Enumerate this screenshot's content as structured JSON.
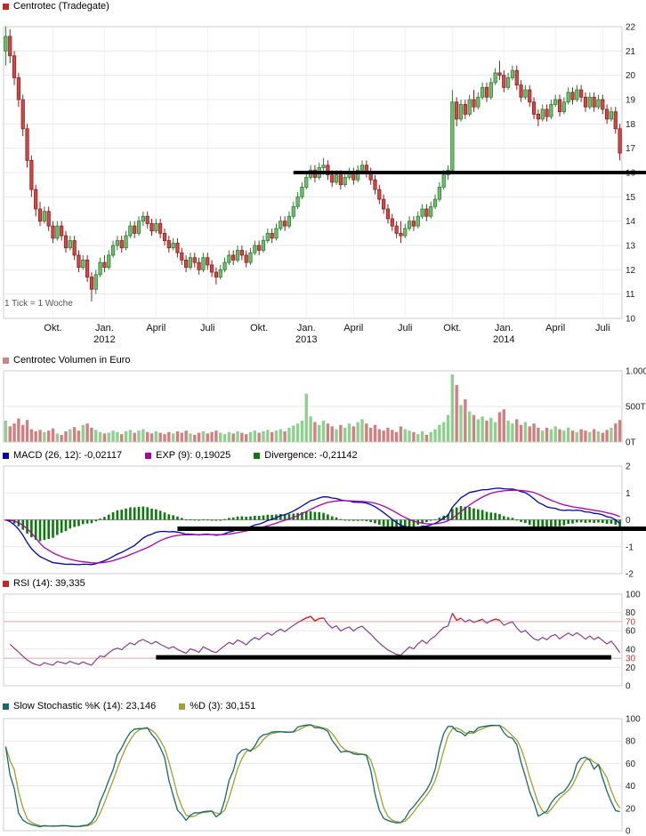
{
  "chart_data": {
    "type": "candlestick-multi-panel",
    "title": "Centrotec (Tradegate)",
    "tick_note": "1 Tick = 1 Woche",
    "x_axis": {
      "labels": [
        {
          "text": "Okt.",
          "week": 11
        },
        {
          "text": "Jan.",
          "week": 23,
          "year": "2012"
        },
        {
          "text": "April",
          "week": 35
        },
        {
          "text": "Juli",
          "week": 47
        },
        {
          "text": "Okt.",
          "week": 59
        },
        {
          "text": "Jan.",
          "week": 70,
          "year": "2013"
        },
        {
          "text": "April",
          "week": 81
        },
        {
          "text": "Juli",
          "week": 93
        },
        {
          "text": "Okt.",
          "week": 104
        },
        {
          "text": "Jan.",
          "week": 116,
          "year": "2014"
        },
        {
          "text": "April",
          "week": 128
        },
        {
          "text": "Juli",
          "week": 139
        }
      ]
    },
    "panels": {
      "price": {
        "legend": "Centrotec (Tradegate)",
        "ylim": [
          10,
          22
        ],
        "yticks": [
          {
            "label": "22",
            "value": 22
          },
          {
            "label": "21",
            "value": 21
          },
          {
            "label": "20",
            "value": 20
          },
          {
            "label": "19",
            "value": 19
          },
          {
            "label": "18",
            "value": 18
          },
          {
            "label": "17",
            "value": 17
          },
          {
            "label": "16",
            "value": 16
          },
          {
            "label": "15",
            "value": 15
          },
          {
            "label": "14",
            "value": 14
          },
          {
            "label": "13",
            "value": 13
          },
          {
            "label": "12",
            "value": 12
          },
          {
            "label": "11",
            "value": 11
          },
          {
            "label": "10",
            "value": 10
          }
        ]
      },
      "volume": {
        "legend": "Centrotec Volumen in Euro",
        "ylim": [
          0,
          1000
        ],
        "yticks": [
          {
            "label": "1.000T",
            "value": 1000
          },
          {
            "label": "500T",
            "value": 500
          },
          {
            "label": "0T",
            "value": 0
          }
        ]
      },
      "macd": {
        "legend_macd": "MACD (26, 12): -0,02117",
        "legend_exp": "EXP (9): 0,19025",
        "legend_div": "Divergence: -0,21142",
        "ylim": [
          -2,
          2
        ],
        "yticks": [
          {
            "label": "2",
            "value": 2
          },
          {
            "label": "1",
            "value": 1
          },
          {
            "label": "0",
            "value": 0
          },
          {
            "label": "-1",
            "value": -1
          },
          {
            "label": "-2",
            "value": -2
          }
        ]
      },
      "rsi": {
        "legend": "RSI (14): 39,335",
        "ylim": [
          0,
          100
        ],
        "yticks": [
          {
            "label": "100",
            "value": 100
          },
          {
            "label": "80",
            "value": 80
          },
          {
            "label": "60",
            "value": 60
          },
          {
            "label": "40",
            "value": 40
          },
          {
            "label": "20",
            "value": 20
          },
          {
            "label": "0",
            "value": 0
          }
        ],
        "thresholds": [
          {
            "label": "70",
            "value": 70
          },
          {
            "label": "30",
            "value": 30
          }
        ]
      },
      "stoch": {
        "legend_k": "Slow Stochastic %K (14): 23,146",
        "legend_d": "%D (3): 30,151",
        "ylim": [
          0,
          100
        ],
        "yticks": [
          {
            "label": "100",
            "value": 100
          },
          {
            "label": "80",
            "value": 80
          },
          {
            "label": "60",
            "value": 60
          },
          {
            "label": "40",
            "value": 40
          },
          {
            "label": "20",
            "value": 20
          },
          {
            "label": "0",
            "value": 0
          }
        ]
      }
    },
    "annotations": {
      "price_line": {
        "value": 16.0,
        "start_week": 67,
        "to_right_edge": true,
        "thickness": 4
      },
      "macd_line": {
        "value": -0.33,
        "start_week": 40,
        "to_right_edge": true,
        "thickness": 5
      },
      "rsi_line": {
        "value": 31,
        "start_week": 35,
        "end_week": 141,
        "thickness": 5
      }
    },
    "colors": {
      "up_fill": "#6fbf6f",
      "up_stroke": "#2e7d32",
      "down_fill": "#d04848",
      "down_stroke": "#8e1f1f",
      "vol_up": "#8fcf8f",
      "vol_down": "#d08080",
      "macd_line": "#0000b0",
      "exp_line": "#aa00aa",
      "divergence": "#0b7a0b",
      "rsi_line": "#8a3d8a",
      "rsi_overbought": "#dd2222",
      "rsi_threshold": "#e8a8a8",
      "rsi_threshold_label": "#cc3333",
      "stoch_k": "#176a6a",
      "stoch_d": "#a0a030",
      "legend_price": "#cc2222",
      "legend_volume": "#cc8484",
      "legend_rsi": "#cc2222",
      "annotation": "#000000",
      "grid": "#e9e9e9",
      "grid_zero": "#999999",
      "frame": "#cccccc",
      "grid_vertical": "#f2f2f2"
    },
    "candles": [
      [
        21.0,
        22.0,
        20.4,
        21.6
      ],
      [
        21.6,
        21.9,
        20.5,
        20.8
      ],
      [
        20.8,
        21.0,
        19.6,
        19.9
      ],
      [
        19.9,
        20.1,
        18.7,
        19.0
      ],
      [
        19.0,
        19.2,
        17.5,
        17.8
      ],
      [
        17.8,
        18.0,
        16.2,
        16.5
      ],
      [
        16.5,
        16.7,
        15.0,
        15.3
      ],
      [
        15.3,
        15.5,
        14.2,
        14.5
      ],
      [
        14.5,
        14.8,
        13.8,
        14.0
      ],
      [
        14.0,
        14.6,
        13.9,
        14.4
      ],
      [
        14.4,
        14.6,
        13.6,
        13.8
      ],
      [
        13.8,
        14.0,
        13.1,
        13.3
      ],
      [
        13.3,
        14.0,
        13.2,
        13.8
      ],
      [
        13.8,
        14.0,
        13.2,
        13.4
      ],
      [
        13.4,
        13.6,
        12.7,
        12.9
      ],
      [
        12.9,
        13.4,
        12.8,
        13.2
      ],
      [
        13.2,
        13.4,
        12.4,
        12.6
      ],
      [
        12.6,
        12.8,
        11.9,
        12.1
      ],
      [
        12.1,
        12.6,
        12.0,
        12.4
      ],
      [
        12.4,
        12.6,
        11.5,
        11.7
      ],
      [
        11.7,
        11.9,
        10.7,
        11.2
      ],
      [
        11.2,
        12.0,
        11.0,
        11.8
      ],
      [
        11.8,
        12.5,
        11.7,
        12.3
      ],
      [
        12.3,
        12.6,
        11.9,
        12.1
      ],
      [
        12.1,
        12.8,
        12.0,
        12.6
      ],
      [
        12.6,
        13.2,
        12.5,
        13.0
      ],
      [
        13.0,
        13.4,
        12.8,
        13.2
      ],
      [
        13.2,
        13.4,
        12.7,
        12.9
      ],
      [
        12.9,
        13.6,
        12.8,
        13.4
      ],
      [
        13.4,
        14.0,
        13.3,
        13.8
      ],
      [
        13.8,
        14.0,
        13.3,
        13.5
      ],
      [
        13.5,
        14.2,
        13.4,
        14.0
      ],
      [
        14.0,
        14.4,
        13.8,
        14.2
      ],
      [
        14.2,
        14.4,
        13.7,
        13.9
      ],
      [
        13.9,
        14.1,
        13.4,
        13.6
      ],
      [
        13.6,
        14.1,
        13.5,
        13.9
      ],
      [
        13.9,
        14.1,
        13.3,
        13.5
      ],
      [
        13.5,
        13.7,
        13.0,
        13.2
      ],
      [
        13.2,
        13.4,
        12.7,
        12.9
      ],
      [
        12.9,
        13.3,
        12.8,
        13.1
      ],
      [
        13.1,
        13.3,
        12.5,
        12.7
      ],
      [
        12.7,
        12.9,
        12.2,
        12.4
      ],
      [
        12.4,
        12.6,
        11.9,
        12.1
      ],
      [
        12.1,
        12.7,
        12.0,
        12.5
      ],
      [
        12.5,
        12.7,
        12.1,
        12.3
      ],
      [
        12.3,
        12.5,
        11.8,
        12.0
      ],
      [
        12.0,
        12.7,
        11.9,
        12.5
      ],
      [
        12.5,
        12.7,
        12.0,
        12.2
      ],
      [
        12.2,
        12.4,
        11.7,
        11.9
      ],
      [
        11.9,
        12.1,
        11.4,
        11.7
      ],
      [
        11.7,
        12.2,
        11.6,
        12.0
      ],
      [
        12.0,
        12.5,
        11.9,
        12.3
      ],
      [
        12.3,
        12.8,
        12.2,
        12.6
      ],
      [
        12.6,
        12.8,
        12.2,
        12.4
      ],
      [
        12.4,
        13.0,
        12.3,
        12.8
      ],
      [
        12.8,
        13.0,
        12.4,
        12.6
      ],
      [
        12.6,
        12.8,
        12.1,
        12.3
      ],
      [
        12.3,
        12.9,
        12.2,
        12.7
      ],
      [
        12.7,
        13.2,
        12.6,
        13.0
      ],
      [
        13.0,
        13.2,
        12.6,
        12.8
      ],
      [
        12.8,
        13.4,
        12.7,
        13.2
      ],
      [
        13.2,
        13.7,
        13.1,
        13.5
      ],
      [
        13.5,
        13.7,
        13.1,
        13.3
      ],
      [
        13.3,
        13.9,
        13.2,
        13.7
      ],
      [
        13.7,
        14.2,
        13.6,
        14.0
      ],
      [
        14.0,
        14.2,
        13.6,
        13.8
      ],
      [
        13.8,
        14.4,
        13.7,
        14.2
      ],
      [
        14.2,
        14.8,
        14.1,
        14.6
      ],
      [
        14.6,
        15.2,
        14.5,
        15.0
      ],
      [
        15.0,
        15.6,
        14.9,
        15.4
      ],
      [
        15.4,
        16.0,
        15.3,
        15.8
      ],
      [
        15.8,
        16.3,
        15.7,
        16.1
      ],
      [
        16.1,
        16.3,
        15.6,
        15.8
      ],
      [
        15.8,
        16.4,
        15.7,
        16.2
      ],
      [
        16.2,
        16.6,
        15.9,
        16.3
      ],
      [
        16.3,
        16.5,
        15.7,
        15.9
      ],
      [
        15.9,
        16.1,
        15.4,
        15.6
      ],
      [
        15.6,
        16.1,
        15.5,
        15.9
      ],
      [
        15.9,
        16.1,
        15.3,
        15.5
      ],
      [
        15.5,
        16.0,
        15.4,
        15.8
      ],
      [
        15.8,
        16.2,
        15.7,
        16.0
      ],
      [
        16.0,
        16.2,
        15.5,
        15.7
      ],
      [
        15.7,
        16.3,
        15.6,
        16.1
      ],
      [
        16.1,
        16.5,
        16.0,
        16.3
      ],
      [
        16.3,
        16.5,
        15.8,
        16.0
      ],
      [
        16.0,
        16.2,
        15.5,
        15.7
      ],
      [
        15.7,
        15.9,
        15.1,
        15.3
      ],
      [
        15.3,
        15.5,
        14.7,
        14.9
      ],
      [
        14.9,
        15.1,
        14.3,
        14.5
      ],
      [
        14.5,
        14.7,
        13.9,
        14.1
      ],
      [
        14.1,
        14.3,
        13.6,
        13.8
      ],
      [
        13.8,
        14.0,
        13.3,
        13.5
      ],
      [
        13.5,
        14.0,
        13.1,
        13.4
      ],
      [
        13.4,
        13.9,
        13.3,
        13.7
      ],
      [
        13.7,
        14.2,
        13.6,
        14.0
      ],
      [
        14.0,
        14.2,
        13.6,
        13.8
      ],
      [
        13.8,
        14.4,
        13.7,
        14.2
      ],
      [
        14.2,
        14.7,
        14.1,
        14.5
      ],
      [
        14.5,
        14.7,
        14.0,
        14.2
      ],
      [
        14.2,
        14.8,
        14.1,
        14.6
      ],
      [
        14.6,
        15.1,
        14.5,
        14.9
      ],
      [
        14.9,
        15.6,
        14.8,
        15.4
      ],
      [
        15.4,
        16.1,
        15.3,
        15.9
      ],
      [
        15.9,
        16.3,
        15.7,
        16.1
      ],
      [
        16.1,
        19.4,
        16.0,
        18.9
      ],
      [
        18.9,
        19.1,
        17.9,
        18.2
      ],
      [
        18.2,
        19.0,
        18.1,
        18.8
      ],
      [
        18.8,
        19.0,
        18.2,
        18.4
      ],
      [
        18.4,
        19.2,
        18.3,
        19.0
      ],
      [
        19.0,
        19.4,
        18.5,
        18.7
      ],
      [
        18.7,
        19.3,
        18.6,
        19.1
      ],
      [
        19.1,
        19.7,
        19.0,
        19.5
      ],
      [
        19.5,
        19.7,
        18.9,
        19.1
      ],
      [
        19.1,
        19.9,
        19.0,
        19.7
      ],
      [
        19.7,
        20.3,
        19.6,
        20.1
      ],
      [
        20.1,
        20.6,
        19.8,
        20.0
      ],
      [
        20.0,
        20.2,
        19.3,
        19.5
      ],
      [
        19.5,
        20.1,
        19.4,
        19.9
      ],
      [
        19.9,
        20.4,
        19.8,
        20.2
      ],
      [
        20.2,
        20.4,
        19.4,
        19.6
      ],
      [
        19.6,
        19.8,
        18.9,
        19.1
      ],
      [
        19.1,
        19.6,
        19.0,
        19.4
      ],
      [
        19.4,
        19.6,
        18.7,
        18.9
      ],
      [
        18.9,
        19.1,
        18.2,
        18.4
      ],
      [
        18.4,
        18.6,
        17.9,
        18.2
      ],
      [
        18.2,
        18.8,
        18.1,
        18.6
      ],
      [
        18.6,
        18.8,
        18.1,
        18.3
      ],
      [
        18.3,
        19.0,
        18.2,
        18.8
      ],
      [
        18.8,
        19.2,
        18.7,
        19.0
      ],
      [
        19.0,
        19.2,
        18.3,
        18.5
      ],
      [
        18.5,
        19.1,
        18.4,
        18.9
      ],
      [
        18.9,
        19.5,
        18.8,
        19.3
      ],
      [
        19.3,
        19.5,
        18.8,
        19.0
      ],
      [
        19.0,
        19.6,
        18.9,
        19.4
      ],
      [
        19.4,
        19.6,
        18.9,
        19.1
      ],
      [
        19.1,
        19.3,
        18.5,
        18.7
      ],
      [
        18.7,
        19.3,
        18.6,
        19.1
      ],
      [
        19.1,
        19.3,
        18.5,
        18.7
      ],
      [
        18.7,
        19.2,
        18.6,
        19.0
      ],
      [
        19.0,
        19.2,
        18.4,
        18.6
      ],
      [
        18.6,
        18.8,
        18.0,
        18.2
      ],
      [
        18.2,
        18.7,
        18.1,
        18.5
      ],
      [
        18.5,
        18.7,
        17.6,
        17.8
      ],
      [
        17.8,
        18.0,
        16.5,
        16.8
      ]
    ],
    "volumes": [
      300,
      220,
      260,
      330,
      240,
      310,
      180,
      150,
      170,
      140,
      160,
      190,
      120,
      100,
      150,
      180,
      210,
      160,
      240,
      260,
      200,
      170,
      140,
      120,
      130,
      160,
      140,
      110,
      150,
      170,
      130,
      160,
      180,
      140,
      120,
      150,
      130,
      110,
      140,
      120,
      150,
      130,
      160,
      120,
      100,
      130,
      150,
      120,
      140,
      160,
      130,
      110,
      140,
      120,
      150,
      130,
      110,
      140,
      160,
      130,
      150,
      170,
      140,
      160,
      180,
      150,
      200,
      230,
      260,
      300,
      680,
      360,
      280,
      240,
      300,
      260,
      220,
      180,
      240,
      200,
      260,
      220,
      280,
      320,
      260,
      200,
      240,
      180,
      160,
      200,
      170,
      140,
      220,
      180,
      160,
      140,
      110,
      150,
      100,
      140,
      180,
      240,
      280,
      380,
      950,
      800,
      520,
      600,
      430,
      380,
      320,
      360,
      300,
      340,
      280,
      420,
      460,
      300,
      260,
      320,
      240,
      280,
      220,
      260,
      200,
      160,
      200,
      180,
      220,
      180,
      160,
      200,
      160,
      140,
      180,
      160,
      140,
      180,
      150,
      130,
      170,
      200,
      260,
      310
    ]
  }
}
